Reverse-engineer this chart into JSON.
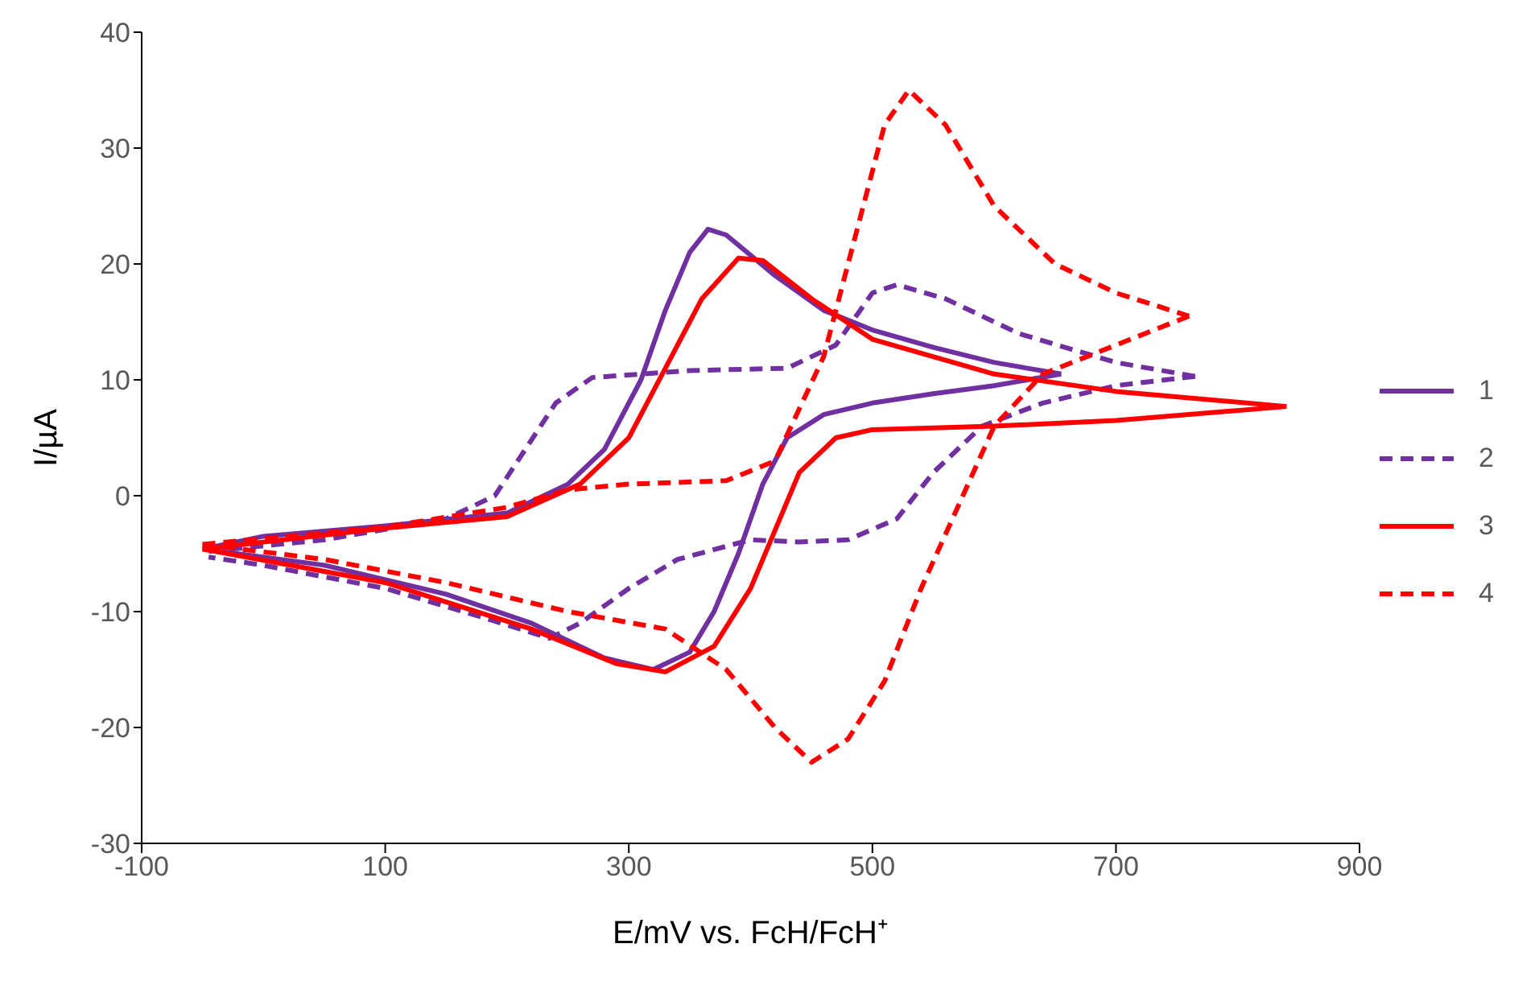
{
  "chart_data": {
    "type": "line",
    "xlabel": "E/mV vs. FcH/FcH⁺",
    "ylabel": "I/µA",
    "xlim": [
      -100,
      900
    ],
    "xticks": [
      -100,
      100,
      300,
      500,
      700,
      900
    ],
    "ylim": [
      -30,
      40
    ],
    "yticks": [
      -30,
      -20,
      -10,
      0,
      10,
      20,
      30,
      40
    ],
    "grid": false,
    "legend": "right",
    "marker": "none",
    "series": [
      {
        "name": "1",
        "color": "#7030a0",
        "line_style": "solid",
        "x": [
          -50,
          0,
          100,
          200,
          250,
          280,
          310,
          330,
          350,
          365,
          380,
          420,
          460,
          500,
          550,
          600,
          655
        ],
        "values": [
          -4.6,
          -3.5,
          -2.6,
          -1.5,
          1,
          4,
          10,
          16,
          21,
          23,
          22.5,
          19,
          16,
          14.3,
          12.8,
          11.5,
          10.5
        ]
      },
      {
        "color": "#7030a0",
        "line_style": "solid",
        "x": [
          655,
          600,
          550,
          500,
          460,
          430,
          410,
          390,
          370,
          350,
          320,
          280,
          220,
          150,
          50,
          -50
        ],
        "values": [
          10.5,
          9.5,
          8.8,
          8,
          7,
          5,
          1,
          -5,
          -10,
          -13.5,
          -15,
          -14,
          -11,
          -8.5,
          -6,
          -4.6
        ]
      },
      {
        "name": "2",
        "color": "#7030a0",
        "line_style": "dashed",
        "x": [
          -45,
          50,
          150,
          190,
          215,
          240,
          270,
          350,
          430,
          470,
          500,
          520,
          560,
          620,
          700,
          765
        ],
        "values": [
          -4.8,
          -3.8,
          -2,
          0,
          4,
          8,
          10.2,
          10.8,
          11,
          13,
          17.5,
          18.2,
          17,
          14,
          11.5,
          10.3
        ]
      },
      {
        "color": "#7030a0",
        "line_style": "dashed",
        "x": [
          765,
          700,
          640,
          590,
          550,
          520,
          480,
          440,
          400,
          340,
          300,
          260,
          235,
          180,
          100,
          0,
          -45
        ],
        "values": [
          10.3,
          9.5,
          8,
          6,
          2,
          -2,
          -3.8,
          -4,
          -3.8,
          -5.5,
          -8,
          -11,
          -12.3,
          -10.5,
          -8,
          -6,
          -5.3
        ]
      },
      {
        "name": "3",
        "color": "#ff0000",
        "line_style": "solid",
        "x": [
          -50,
          100,
          200,
          260,
          300,
          330,
          360,
          390,
          410,
          450,
          500,
          600,
          700,
          840
        ],
        "values": [
          -4.6,
          -2.8,
          -1.8,
          1,
          5,
          11,
          17,
          20.5,
          20.3,
          17,
          13.5,
          10.5,
          9,
          7.7
        ]
      },
      {
        "color": "#ff0000",
        "line_style": "solid",
        "x": [
          840,
          700,
          600,
          500,
          470,
          440,
          420,
          400,
          370,
          330,
          290,
          220,
          100,
          -50
        ],
        "values": [
          7.7,
          6.5,
          6,
          5.7,
          5,
          2,
          -3,
          -8,
          -13,
          -15.2,
          -14.5,
          -11.5,
          -7.5,
          -4.6
        ]
      },
      {
        "name": "4",
        "color": "#ff0000",
        "line_style": "dashed",
        "x": [
          -50,
          100,
          200,
          250,
          300,
          380,
          420,
          460,
          490,
          510,
          530,
          560,
          600,
          650,
          700,
          760
        ],
        "values": [
          -4.2,
          -2.7,
          -1,
          0.5,
          1,
          1.3,
          3,
          12,
          24,
          32,
          35,
          32,
          25,
          20,
          17.5,
          15.5
        ]
      },
      {
        "color": "#ff0000",
        "line_style": "dashed",
        "x": [
          760,
          700,
          640,
          600,
          570,
          540,
          510,
          480,
          450,
          420,
          380,
          330,
          250,
          150,
          50,
          -50
        ],
        "values": [
          15.5,
          13,
          10.5,
          6,
          -1,
          -8,
          -16,
          -21,
          -23,
          -20,
          -15,
          -11.5,
          -10,
          -7.5,
          -5.5,
          -4.2
        ]
      }
    ]
  }
}
